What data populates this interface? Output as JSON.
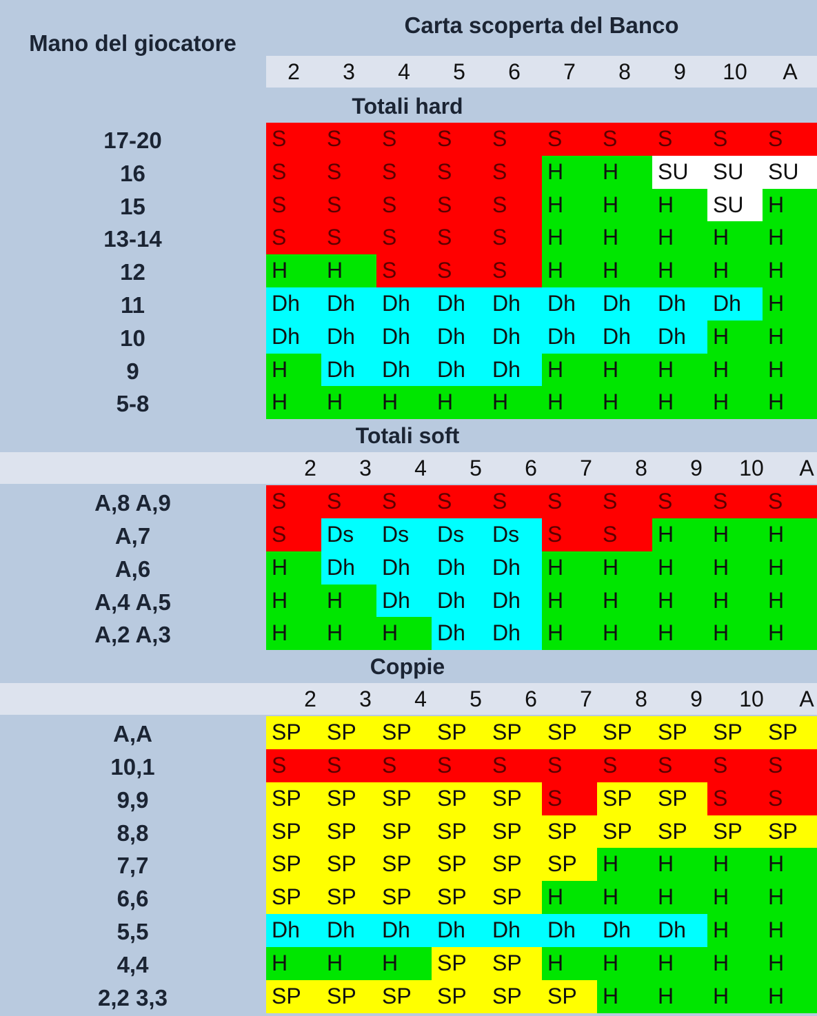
{
  "header": {
    "dealer_title": "Carta scoperta del Banco",
    "player_title": "Mano del giocatore",
    "dealer_cards": [
      "2",
      "3",
      "4",
      "5",
      "6",
      "7",
      "8",
      "9",
      "10",
      "A"
    ]
  },
  "colors": {
    "S": "#ff0000",
    "H": "#00e600",
    "Dh": "#00ffff",
    "Ds": "#00ffff",
    "SP": "#ffff00",
    "SU": "#ffffff"
  },
  "sections": [
    {
      "title": "Totali hard",
      "show_numbers": false,
      "rows": [
        {
          "label": "17-20",
          "cells": [
            "S",
            "S",
            "S",
            "S",
            "S",
            "S",
            "S",
            "S",
            "S",
            "S"
          ]
        },
        {
          "label": "16",
          "cells": [
            "S",
            "S",
            "S",
            "S",
            "S",
            "H",
            "H",
            "SU",
            "SU",
            "SU"
          ]
        },
        {
          "label": "15",
          "cells": [
            "S",
            "S",
            "S",
            "S",
            "S",
            "H",
            "H",
            "H",
            "SU",
            "H"
          ]
        },
        {
          "label": "13-14",
          "cells": [
            "S",
            "S",
            "S",
            "S",
            "S",
            "H",
            "H",
            "H",
            "H",
            "H"
          ]
        },
        {
          "label": "12",
          "cells": [
            "H",
            "H",
            "S",
            "S",
            "S",
            "H",
            "H",
            "H",
            "H",
            "H"
          ]
        },
        {
          "label": "11",
          "cells": [
            "Dh",
            "Dh",
            "Dh",
            "Dh",
            "Dh",
            "Dh",
            "Dh",
            "Dh",
            "Dh",
            "H"
          ]
        },
        {
          "label": "10",
          "cells": [
            "Dh",
            "Dh",
            "Dh",
            "Dh",
            "Dh",
            "Dh",
            "Dh",
            "Dh",
            "H",
            "H"
          ]
        },
        {
          "label": "9",
          "cells": [
            "H",
            "Dh",
            "Dh",
            "Dh",
            "Dh",
            "H",
            "H",
            "H",
            "H",
            "H"
          ]
        },
        {
          "label": "5-8",
          "cells": [
            "H",
            "H",
            "H",
            "H",
            "H",
            "H",
            "H",
            "H",
            "H",
            "H"
          ]
        }
      ]
    },
    {
      "title": "Totali soft",
      "show_numbers": true,
      "rows": [
        {
          "label": "A,8 A,9",
          "cells": [
            "S",
            "S",
            "S",
            "S",
            "S",
            "S",
            "S",
            "S",
            "S",
            "S"
          ]
        },
        {
          "label": "A,7",
          "cells": [
            "S",
            "Ds",
            "Ds",
            "Ds",
            "Ds",
            "S",
            "S",
            "H",
            "H",
            "H"
          ]
        },
        {
          "label": "A,6",
          "cells": [
            "H",
            "Dh",
            "Dh",
            "Dh",
            "Dh",
            "H",
            "H",
            "H",
            "H",
            "H"
          ]
        },
        {
          "label": "A,4 A,5",
          "cells": [
            "H",
            "H",
            "Dh",
            "Dh",
            "Dh",
            "H",
            "H",
            "H",
            "H",
            "H"
          ]
        },
        {
          "label": "A,2 A,3",
          "cells": [
            "H",
            "H",
            "H",
            "Dh",
            "Dh",
            "H",
            "H",
            "H",
            "H",
            "H"
          ]
        }
      ]
    },
    {
      "title": "Coppie",
      "show_numbers": true,
      "rows": [
        {
          "label": "A,A",
          "cells": [
            "SP",
            "SP",
            "SP",
            "SP",
            "SP",
            "SP",
            "SP",
            "SP",
            "SP",
            "SP"
          ]
        },
        {
          "label": "10,1",
          "cells": [
            "S",
            "S",
            "S",
            "S",
            "S",
            "S",
            "S",
            "S",
            "S",
            "S"
          ]
        },
        {
          "label": "9,9",
          "cells": [
            "SP",
            "SP",
            "SP",
            "SP",
            "SP",
            "S",
            "SP",
            "SP",
            "S",
            "S"
          ]
        },
        {
          "label": "8,8",
          "cells": [
            "SP",
            "SP",
            "SP",
            "SP",
            "SP",
            "SP",
            "SP",
            "SP",
            "SP",
            "SP"
          ]
        },
        {
          "label": "7,7",
          "cells": [
            "SP",
            "SP",
            "SP",
            "SP",
            "SP",
            "SP",
            "H",
            "H",
            "H",
            "H"
          ]
        },
        {
          "label": "6,6",
          "cells": [
            "SP",
            "SP",
            "SP",
            "SP",
            "SP",
            "H",
            "H",
            "H",
            "H",
            "H"
          ]
        },
        {
          "label": "5,5",
          "cells": [
            "Dh",
            "Dh",
            "Dh",
            "Dh",
            "Dh",
            "Dh",
            "Dh",
            "Dh",
            "H",
            "H"
          ]
        },
        {
          "label": "4,4",
          "cells": [
            "H",
            "H",
            "H",
            "SP",
            "SP",
            "H",
            "H",
            "H",
            "H",
            "H"
          ]
        },
        {
          "label": "2,2 3,3",
          "cells": [
            "SP",
            "SP",
            "SP",
            "SP",
            "SP",
            "SP",
            "H",
            "H",
            "H",
            "H"
          ]
        }
      ]
    }
  ]
}
